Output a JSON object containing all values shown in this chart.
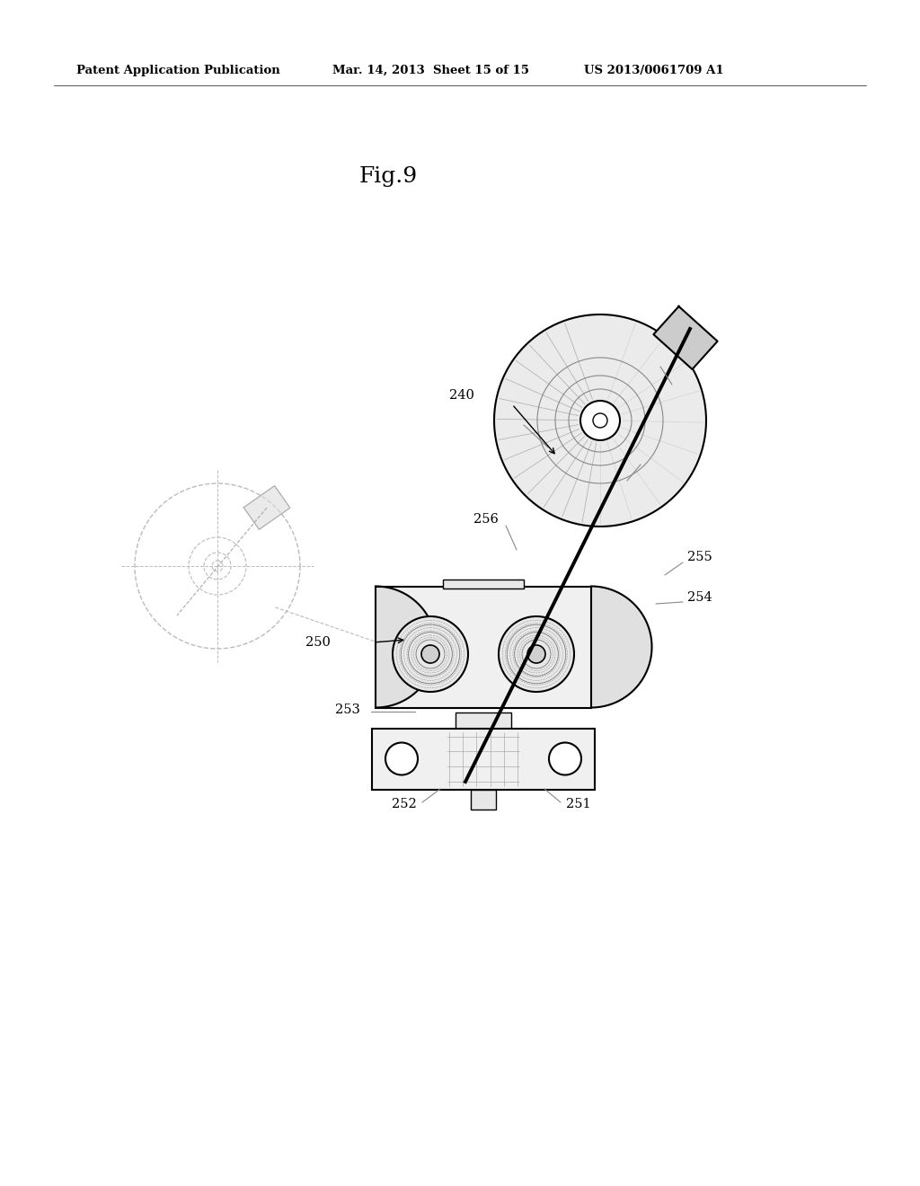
{
  "title_header_left": "Patent Application Publication",
  "title_header_mid": "Mar. 14, 2013  Sheet 15 of 15",
  "title_header_right": "US 2013/0061709 A1",
  "fig_label": "Fig.9",
  "bg_color": "#ffffff",
  "line_color": "#000000",
  "fig_w": 1024,
  "fig_h": 1320
}
